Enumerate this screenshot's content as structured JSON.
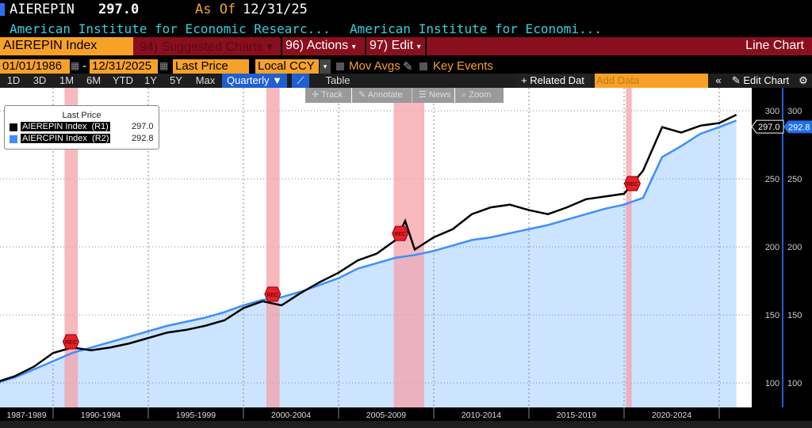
{
  "header": {
    "ticker": "AIEREPIN",
    "last": "297.0",
    "as_of_label": "As Of",
    "as_of_date": "12/31/25",
    "desc1": "American Institute for Economic Researc...",
    "desc2": "American Institute for Economi..."
  },
  "menu": {
    "security": "AIEREPIN Index",
    "suggested": "94) Suggested Charts ▾",
    "actions": "96) Actions",
    "edit": "97) Edit",
    "chart_type": "Line Chart"
  },
  "controls": {
    "start_date": "01/01/1986",
    "end_date": "12/31/2025",
    "field": "Last Price",
    "currency": "Local CCY",
    "mov_avgs": "Mov Avgs",
    "key_events": "Key Events"
  },
  "periods": [
    "1D",
    "3D",
    "1M",
    "6M",
    "YTD",
    "1Y",
    "5Y",
    "Max"
  ],
  "frequency": "Quarterly ▼",
  "table_label": "Table",
  "related": "+ Related Dat",
  "add_data_placeholder": "Add Data",
  "edit_chart": "Edit Chart",
  "chart_tools": [
    "Track",
    "Annotate",
    "News",
    "Zoom"
  ],
  "colors": {
    "series1": "#000000",
    "series2": "#3d8eff",
    "fill": "#cce4ff",
    "recession": "#f4a0a8",
    "accent_orange": "#f7a128",
    "menu_red": "#8a0f1e"
  },
  "chart_data": {
    "type": "line",
    "legend": {
      "title": "Last Price",
      "placement": "top-left"
    },
    "xlim": [
      1987.1,
      2026
    ],
    "ylim": [
      80,
      315
    ],
    "x_tick_labels": [
      "1987-1989",
      "1990-1994",
      "1995-1999",
      "2000-2004",
      "2005-2009",
      "2010-2014",
      "2015-2019",
      "2020-2024"
    ],
    "y_ticks": [
      100,
      150,
      200,
      250,
      300
    ],
    "recessions": [
      [
        1990.6,
        1991.3
      ],
      [
        2001.2,
        2001.9
      ],
      [
        2007.9,
        2009.5
      ],
      [
        2020.1,
        2020.4
      ]
    ],
    "recession_label": "REC",
    "series": [
      {
        "name": "AIEREPIN Index",
        "axis": "(R1)",
        "last": "297.0",
        "x": [
          1987,
          1988,
          1989,
          1990,
          1991,
          1992,
          1993,
          1994,
          1995,
          1996,
          1997,
          1998,
          1999,
          2000,
          2001,
          2002,
          2003,
          2004,
          2005,
          2006,
          2007,
          2008,
          2008.5,
          2009,
          2010,
          2011,
          2012,
          2013,
          2014,
          2015,
          2016,
          2017,
          2018,
          2019,
          2020,
          2021,
          2022,
          2023,
          2024,
          2025,
          2025.9
        ],
        "y": [
          100.5,
          105,
          112,
          122,
          126,
          124,
          126,
          129,
          133,
          137,
          139,
          142,
          146,
          155,
          160,
          157,
          166,
          174,
          181,
          190,
          195,
          205,
          219,
          198,
          207,
          213,
          224,
          229,
          231,
          227,
          224,
          229,
          235,
          237,
          239,
          256,
          288,
          284,
          289,
          291,
          297
        ]
      },
      {
        "name": "AIERCPIN Index",
        "axis": "(R2)",
        "last": "292.8",
        "x": [
          1987,
          1988,
          1989,
          1990,
          1991,
          1992,
          1993,
          1994,
          1995,
          1996,
          1997,
          1998,
          1999,
          2000,
          2001,
          2002,
          2003,
          2004,
          2005,
          2006,
          2007,
          2008,
          2009,
          2010,
          2011,
          2012,
          2013,
          2014,
          2015,
          2016,
          2017,
          2018,
          2019,
          2020,
          2021,
          2022,
          2023,
          2024,
          2025,
          2025.9
        ],
        "y": [
          100,
          104,
          110,
          116,
          122,
          126,
          130,
          134,
          138,
          142,
          145,
          148,
          152,
          157,
          161,
          163,
          167,
          172,
          177,
          184,
          188,
          192,
          194,
          197,
          201,
          205,
          207,
          210,
          213,
          216,
          220,
          224,
          228,
          231,
          236,
          266,
          274,
          283,
          288,
          292.8
        ]
      }
    ]
  }
}
